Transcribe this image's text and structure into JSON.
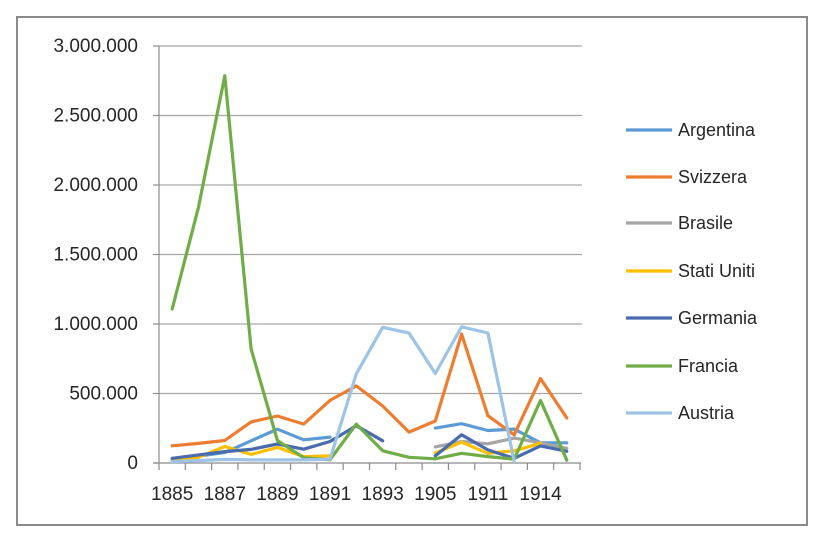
{
  "chart_data": {
    "type": "line",
    "title": "",
    "xlabel": "",
    "ylabel": "",
    "ylim": [
      0,
      3000000
    ],
    "y_ticks": [
      0,
      500000,
      1000000,
      1500000,
      2000000,
      2500000,
      3000000
    ],
    "y_tick_labels": [
      "0",
      "500.000",
      "1.000.000",
      "1.500.000",
      "2.000.000",
      "2.500.000",
      "3.000.000"
    ],
    "grid": true,
    "legend_position": "right",
    "categories": [
      "1885",
      "",
      "1887",
      "",
      "1889",
      "",
      "1891",
      "",
      "1893",
      "",
      "1905",
      "",
      "1911",
      "",
      "1914",
      ""
    ],
    "x_tick_labels_visible": [
      "1885",
      "1887",
      "1889",
      "1891",
      "1893",
      "1905",
      "1911",
      "1914"
    ],
    "series": [
      {
        "name": "Argentina",
        "color": "#5B9BD5",
        "values": [
          26000,
          50000,
          75000,
          160000,
          243000,
          167000,
          186000,
          null,
          null,
          null,
          251000,
          283000,
          234000,
          244000,
          145000,
          145000
        ]
      },
      {
        "name": "Svizzera",
        "color": "#ED7D31",
        "values": [
          124000,
          141000,
          162000,
          296000,
          338000,
          280000,
          450000,
          555000,
          410000,
          222000,
          302000,
          928000,
          340000,
          203000,
          607000,
          324000
        ]
      },
      {
        "name": "Brasile",
        "color": "#A5A5A5",
        "values": [
          null,
          null,
          null,
          null,
          null,
          null,
          null,
          null,
          null,
          null,
          116000,
          155000,
          138000,
          179000,
          145000,
          106000
        ]
      },
      {
        "name": "Stati Uniti",
        "color": "#FFC000",
        "values": [
          17000,
          41000,
          119000,
          62000,
          112000,
          46000,
          51000,
          null,
          null,
          null,
          72000,
          150000,
          70000,
          88000,
          142000,
          null
        ]
      },
      {
        "name": "Germania",
        "color": "#4A6CAE",
        "values": [
          34000,
          58000,
          82000,
          98000,
          137000,
          99000,
          155000,
          268000,
          160000,
          null,
          51000,
          203000,
          94000,
          34000,
          123000,
          84000
        ]
      },
      {
        "name": "Francia",
        "color": "#70AD47",
        "values": [
          1108000,
          1840000,
          2786000,
          821000,
          162000,
          38000,
          23000,
          280000,
          88000,
          41000,
          30000,
          70000,
          46000,
          28000,
          450000,
          20000
        ]
      },
      {
        "name": "Austria",
        "color": "#9DC3E6",
        "values": [
          10000,
          17000,
          26000,
          22000,
          22000,
          22000,
          27000,
          642000,
          976000,
          935000,
          644000,
          980000,
          935000,
          10000,
          null,
          null
        ]
      }
    ]
  }
}
